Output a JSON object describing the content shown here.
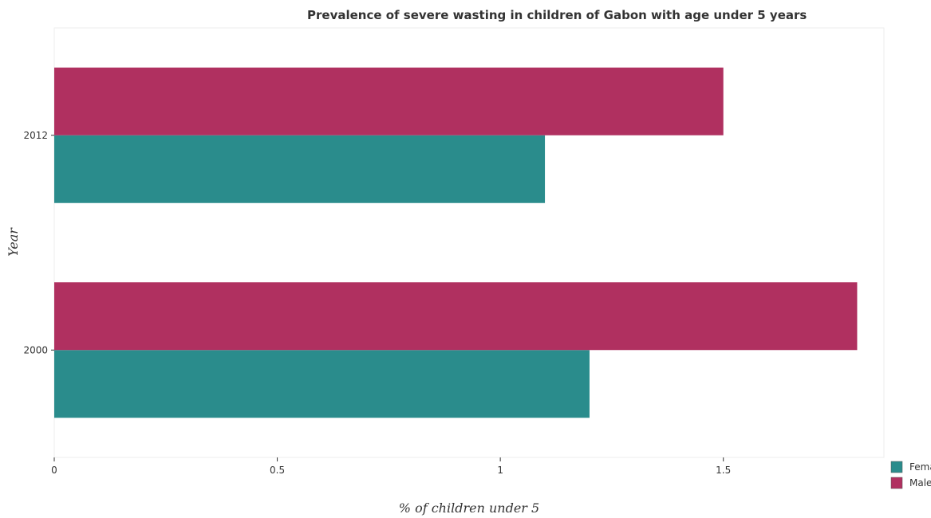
{
  "chart_data": {
    "type": "bar",
    "orientation": "horizontal",
    "title": "Prevalence of severe wasting in children of Gabon with age under 5 years",
    "xlabel": "% of children under 5",
    "ylabel": "Year",
    "categories": [
      "2000",
      "2012"
    ],
    "series": [
      {
        "name": "Female",
        "color": "#2a8c8c",
        "values": [
          1.2,
          1.1
        ]
      },
      {
        "name": "Male",
        "color": "#b03060",
        "values": [
          1.8,
          1.5
        ]
      }
    ],
    "xlim": [
      0,
      1.86
    ],
    "xticks": [
      {
        "value": 0,
        "label": "0"
      },
      {
        "value": 0.5,
        "label": "0.5"
      },
      {
        "value": 1,
        "label": "1"
      },
      {
        "value": 1.5,
        "label": "1.5"
      }
    ],
    "grid": false,
    "legend_position": "bottom-right"
  }
}
